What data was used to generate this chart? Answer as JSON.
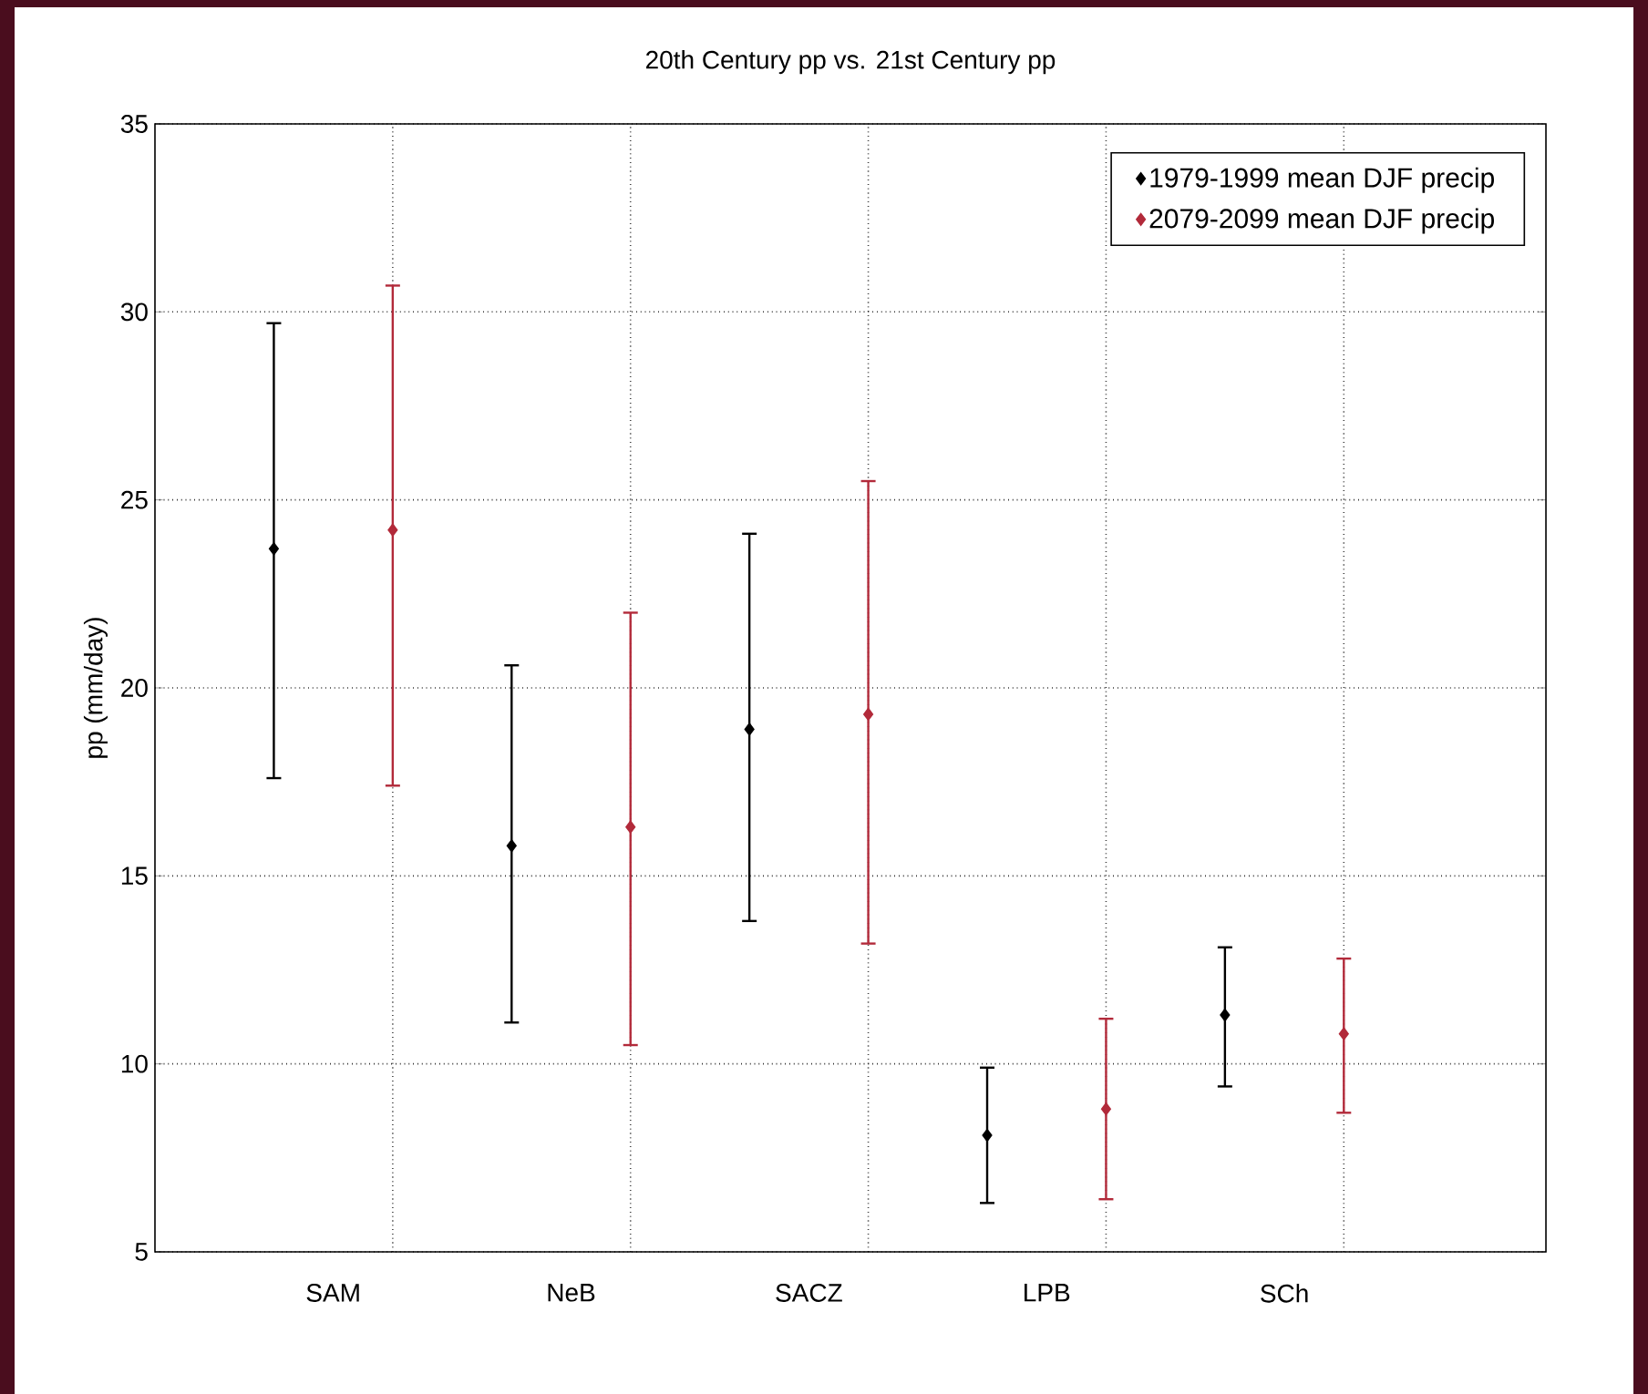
{
  "chart_data": {
    "type": "scatter",
    "title": "20th Century pp vs. 21st Century pp",
    "ylabel": "pp (mm/day)",
    "categories": [
      "SAM",
      "NeB",
      "SACZ",
      "LPB",
      "SCh"
    ],
    "ylim": [
      5,
      35
    ],
    "yticks": [
      5,
      10,
      15,
      20,
      25,
      30,
      35
    ],
    "grid": true,
    "legend": "top right",
    "marker": "diamond",
    "series": [
      {
        "name": "1979-1999 mean DJF precip",
        "color": "#000000",
        "values": [
          23.7,
          15.8,
          18.9,
          8.1,
          11.3
        ],
        "errors": [
          [
            17.6,
            29.7
          ],
          [
            11.1,
            20.6
          ],
          [
            13.8,
            24.1
          ],
          [
            6.3,
            9.9
          ],
          [
            9.4,
            13.1
          ]
        ]
      },
      {
        "name": "2079-2099 mean DJF precip",
        "color": "#b22a3a",
        "values": [
          24.2,
          16.3,
          19.3,
          8.8,
          10.8
        ],
        "errors": [
          [
            17.4,
            30.7
          ],
          [
            10.5,
            22.0
          ],
          [
            13.2,
            25.5
          ],
          [
            6.4,
            11.2
          ],
          [
            8.7,
            12.8
          ]
        ]
      }
    ]
  }
}
